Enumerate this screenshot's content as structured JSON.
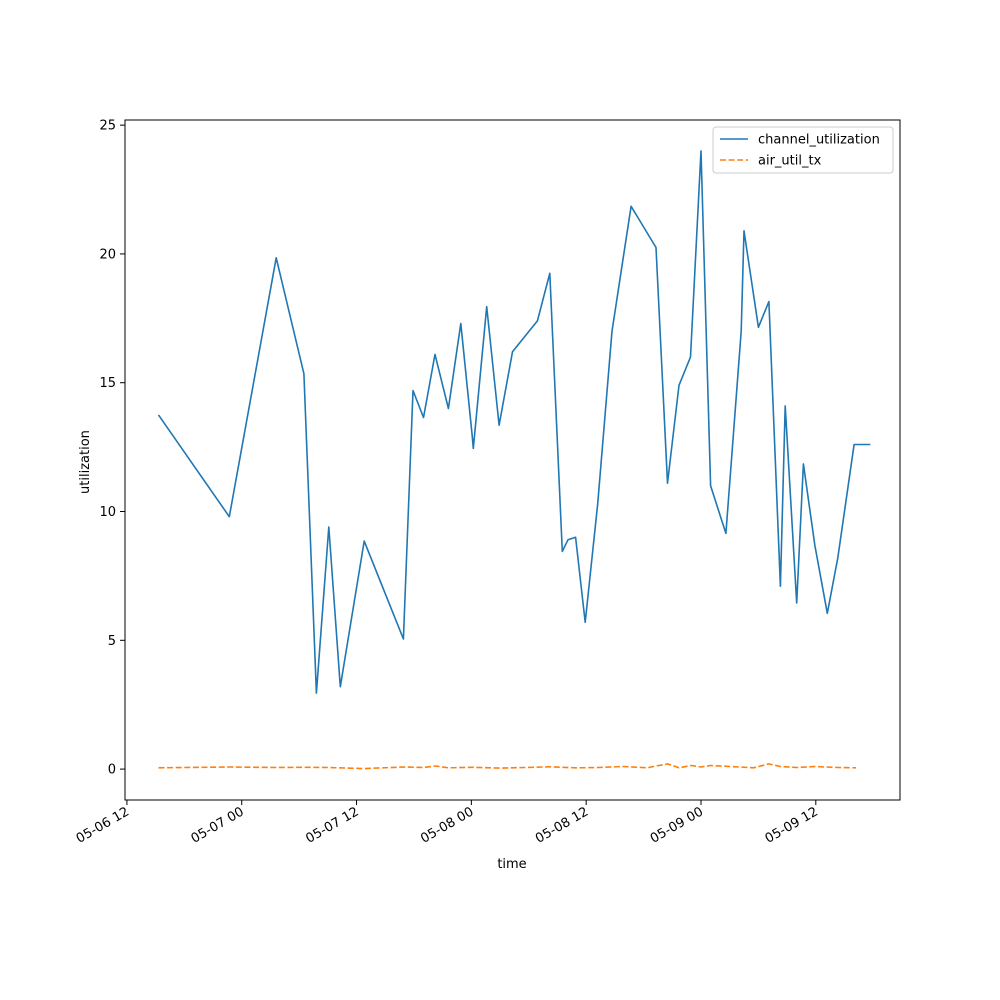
{
  "chart_data": {
    "type": "line",
    "xlabel": "time",
    "ylabel": "utilization",
    "x_tick_labels": [
      "05-06 12",
      "05-07 00",
      "05-07 12",
      "05-08 00",
      "05-08 12",
      "05-09 00",
      "05-09 12"
    ],
    "x_ticks_hours": [
      0,
      12,
      24,
      36,
      48,
      60,
      72
    ],
    "x_axis_start": "2025-05-06T12:00",
    "xlim_hours": [
      -0.2,
      80.8
    ],
    "y_ticks": [
      0,
      5,
      10,
      15,
      20,
      25
    ],
    "ylim": [
      -1.2,
      25.2
    ],
    "grid": false,
    "legend_position": "upper right",
    "series": [
      {
        "name": "channel_utilization",
        "color": "#1f77b4",
        "dash": "solid",
        "x": [
          3.3,
          10.7,
          15.6,
          18.5,
          19.8,
          21.1,
          22.3,
          24.8,
          28.9,
          29.9,
          31.0,
          32.2,
          33.6,
          34.9,
          36.1,
          36.2,
          37.6,
          38.9,
          40.3,
          41.6,
          42.9,
          44.2,
          45.5,
          46.1,
          46.9,
          47.9,
          49.2,
          50.7,
          52.7,
          55.3,
          56.5,
          57.7,
          58.9,
          60.0,
          61.0,
          62.6,
          64.2,
          64.5,
          66.0,
          67.1,
          68.3,
          68.8,
          70.0,
          70.7,
          71.9,
          73.2,
          74.3,
          76.0,
          76.4,
          77.3,
          77.7
        ],
        "y": [
          13.75,
          9.8,
          19.85,
          15.35,
          2.95,
          9.4,
          3.2,
          8.85,
          5.05,
          14.7,
          13.65,
          16.1,
          14.0,
          17.3,
          12.9,
          12.45,
          17.95,
          13.35,
          16.2,
          16.8,
          17.4,
          19.25,
          8.45,
          8.9,
          9.0,
          5.7,
          10.3,
          17.0,
          21.85,
          20.25,
          11.1,
          14.9,
          16.0,
          24.0,
          11.0,
          9.15,
          17.0,
          20.9,
          17.15,
          18.15,
          7.1,
          14.1,
          6.45,
          11.85,
          8.7,
          6.05,
          8.2,
          12.6,
          12.6,
          12.6,
          12.6
        ]
      },
      {
        "name": "air_util_tx",
        "color": "#ff7f0e",
        "dash": "dashed",
        "x": [
          3.3,
          10.7,
          15.6,
          18.5,
          21.1,
          24.8,
          28.9,
          31.0,
          32.2,
          33.6,
          36.1,
          38.9,
          41.6,
          44.2,
          46.9,
          49.2,
          51.9,
          54.4,
          55.3,
          56.5,
          57.7,
          59.0,
          60.0,
          61.0,
          63.0,
          65.5,
          67.1,
          68.3,
          70.0,
          71.9,
          74.3,
          76.2
        ],
        "y": [
          0.05,
          0.08,
          0.06,
          0.07,
          0.06,
          0.02,
          0.08,
          0.06,
          0.12,
          0.05,
          0.07,
          0.04,
          0.06,
          0.09,
          0.05,
          0.06,
          0.1,
          0.05,
          0.12,
          0.2,
          0.05,
          0.14,
          0.08,
          0.14,
          0.1,
          0.05,
          0.2,
          0.1,
          0.06,
          0.1,
          0.06,
          0.05
        ]
      }
    ]
  }
}
